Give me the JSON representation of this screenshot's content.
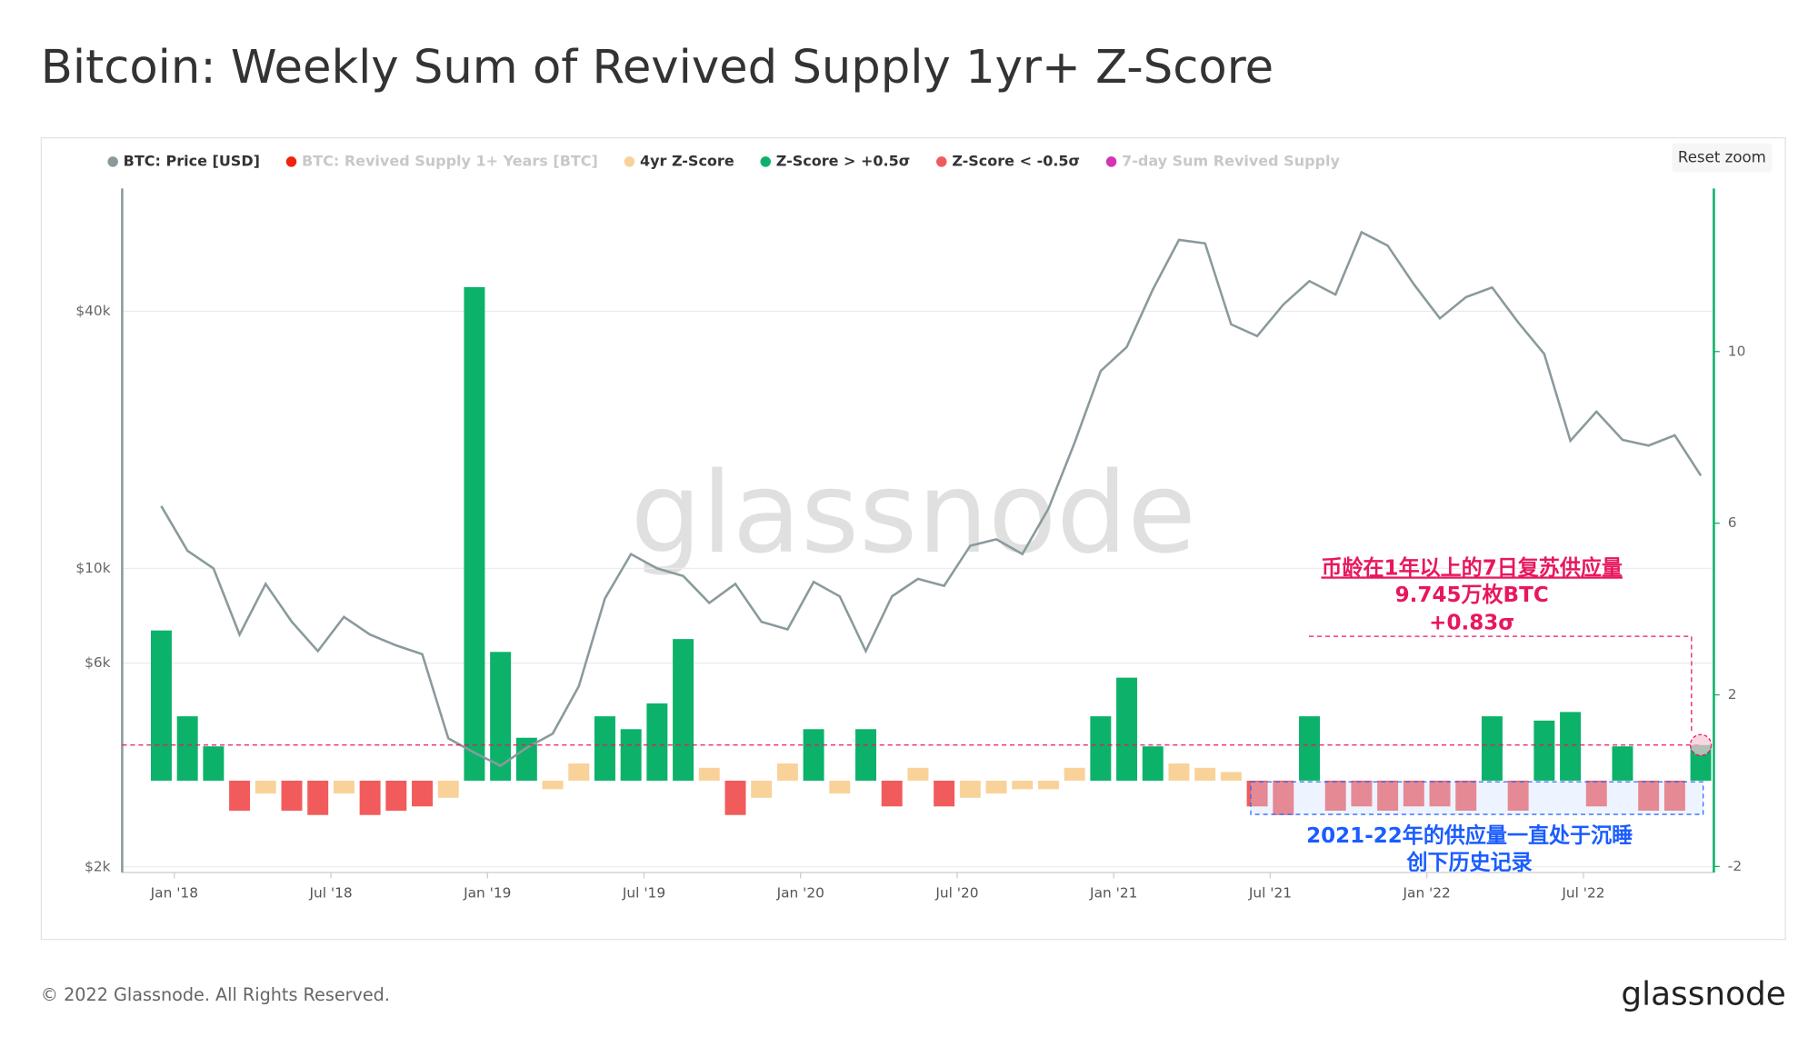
{
  "title": "Bitcoin: Weekly Sum of Revived Supply 1yr+ Z-Score",
  "reset_zoom": "Reset zoom",
  "watermark": "glassnode",
  "footer": {
    "copyright": "© 2022 Glassnode. All Rights Reserved.",
    "logo": "glassnode"
  },
  "chart_data": {
    "type": "combo",
    "log_scale": "y",
    "grid": true,
    "x": [
      "2017-12",
      "2018-01",
      "2018-02",
      "2018-03",
      "2018-04",
      "2018-05",
      "2018-06",
      "2018-07",
      "2018-08",
      "2018-09",
      "2018-10",
      "2018-11",
      "2018-12",
      "2019-01",
      "2019-02",
      "2019-03",
      "2019-04",
      "2019-05",
      "2019-06",
      "2019-07",
      "2019-08",
      "2019-09",
      "2019-10",
      "2019-11",
      "2019-12",
      "2020-01",
      "2020-02",
      "2020-03",
      "2020-04",
      "2020-05",
      "2020-06",
      "2020-07",
      "2020-08",
      "2020-09",
      "2020-10",
      "2020-11",
      "2020-12",
      "2021-01",
      "2021-02",
      "2021-03",
      "2021-04",
      "2021-05",
      "2021-06",
      "2021-07",
      "2021-08",
      "2021-09",
      "2021-10",
      "2021-11",
      "2021-12",
      "2022-01",
      "2022-02",
      "2022-03",
      "2022-04",
      "2022-05",
      "2022-06",
      "2022-07",
      "2022-08",
      "2022-09",
      "2022-10",
      "2022-11"
    ],
    "xlim": [
      "2017-11",
      "2022-12"
    ],
    "xticks": [
      {
        "value": "2018-01",
        "label": "Jan '18"
      },
      {
        "value": "2018-07",
        "label": "Jul '18"
      },
      {
        "value": "2019-01",
        "label": "Jan '19"
      },
      {
        "value": "2019-07",
        "label": "Jul '19"
      },
      {
        "value": "2020-01",
        "label": "Jan '20"
      },
      {
        "value": "2020-07",
        "label": "Jul '20"
      },
      {
        "value": "2021-01",
        "label": "Jan '21"
      },
      {
        "value": "2021-07",
        "label": "Jul '21"
      },
      {
        "value": "2022-01",
        "label": "Jan '22"
      },
      {
        "value": "2022-07",
        "label": "Jul '22"
      }
    ],
    "ylim": [
      1940,
      77600
    ],
    "yticks": [
      {
        "value": 2000,
        "label": "$2k"
      },
      {
        "value": 6000,
        "label": "$6k"
      },
      {
        "value": 10000,
        "label": "$10k"
      },
      {
        "value": 40000,
        "label": "$40k"
      }
    ],
    "y2lim": [
      -2.14,
      13.8
    ],
    "y2ticks": [
      -2,
      2,
      6,
      10
    ],
    "series": [
      {
        "name": "BTC: Price [USD]",
        "color": "#8a9a9c",
        "kind": "line",
        "values": [
          14000,
          11000,
          10000,
          7000,
          9200,
          7500,
          6400,
          7700,
          7000,
          6600,
          6300,
          4000,
          3700,
          3450,
          3800,
          4100,
          5300,
          8500,
          10800,
          10000,
          9600,
          8300,
          9200,
          7500,
          7200,
          9300,
          8600,
          6400,
          8600,
          9450,
          9100,
          11300,
          11700,
          10800,
          13800,
          19700,
          29000,
          33000,
          45000,
          58800,
          57700,
          37300,
          35000,
          41500,
          47100,
          43800,
          61300,
          57000,
          46300,
          38500,
          43200,
          45500,
          37700,
          31800,
          19900,
          23300,
          20000,
          19400,
          20500,
          16500
        ]
      },
      {
        "name": "BTC: Revived Supply 1+ Years [BTC]",
        "color": "#f2230c",
        "hidden": true
      },
      {
        "name": "4yr Z-Score",
        "color": "#f9d29a",
        "kind": "bar",
        "axis": "y2",
        "values": [
          null,
          null,
          null,
          null,
          -0.3,
          null,
          null,
          -0.3,
          null,
          null,
          null,
          -0.4,
          null,
          null,
          null,
          -0.2,
          0.4,
          null,
          null,
          null,
          null,
          0.3,
          null,
          -0.4,
          0.4,
          null,
          -0.3,
          null,
          null,
          0.3,
          null,
          -0.4,
          -0.3,
          -0.2,
          -0.2,
          0.3,
          null,
          null,
          null,
          0.4,
          0.3,
          0.2,
          null,
          null,
          null,
          null,
          null,
          null,
          null,
          null,
          null,
          null,
          null,
          null,
          null,
          null,
          null,
          null,
          null,
          null
        ]
      },
      {
        "name": "Z-Score > +0.5σ",
        "color": "#0cb26a",
        "kind": "bar",
        "axis": "y2",
        "values": [
          3.5,
          1.5,
          0.8,
          null,
          null,
          null,
          null,
          null,
          null,
          null,
          null,
          null,
          11.5,
          3.0,
          1.0,
          null,
          null,
          1.5,
          1.2,
          1.8,
          3.3,
          null,
          null,
          null,
          null,
          1.2,
          null,
          1.2,
          null,
          null,
          null,
          null,
          null,
          null,
          null,
          null,
          1.5,
          2.4,
          0.8,
          null,
          null,
          null,
          null,
          null,
          1.5,
          null,
          null,
          null,
          null,
          null,
          null,
          1.5,
          null,
          1.4,
          1.6,
          null,
          0.8,
          null,
          null,
          0.83
        ]
      },
      {
        "name": "Z-Score < -0.5σ",
        "color": "#f25b5b",
        "kind": "bar",
        "axis": "y2",
        "values": [
          null,
          null,
          null,
          -0.7,
          null,
          -0.7,
          -0.8,
          null,
          -0.8,
          -0.7,
          -0.6,
          null,
          null,
          null,
          null,
          null,
          null,
          null,
          null,
          null,
          null,
          null,
          -0.8,
          null,
          null,
          null,
          null,
          null,
          -0.6,
          null,
          -0.6,
          null,
          null,
          null,
          null,
          null,
          null,
          null,
          null,
          null,
          null,
          null,
          -0.6,
          -0.8,
          null,
          -0.7,
          -0.6,
          -0.7,
          -0.6,
          -0.6,
          -0.7,
          null,
          -0.7,
          null,
          null,
          -0.6,
          null,
          -0.7,
          -0.7,
          null
        ]
      },
      {
        "name": "7-day Sum Revived Supply",
        "color": "#d633b4",
        "hidden": true
      }
    ],
    "annotations": [
      "币龄在1年以上的7日复苏供应量",
      "9.745万枚BTC",
      "+0.83σ",
      "2021-22年的供应量一直处于沉睡",
      "创下历史记录"
    ]
  }
}
